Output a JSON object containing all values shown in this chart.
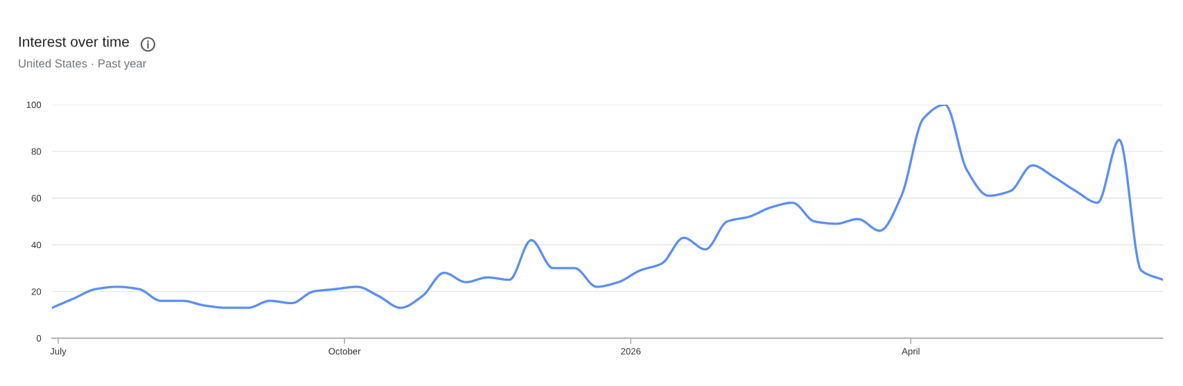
{
  "chart_data": {
    "type": "line",
    "title": "Interest over time",
    "subtitle": "United States · Past year",
    "x": [
      "2025-06-29",
      "2025-07-06",
      "2025-07-13",
      "2025-07-20",
      "2025-07-27",
      "2025-08-03",
      "2025-08-10",
      "2025-08-17",
      "2025-08-24",
      "2025-08-31",
      "2025-09-07",
      "2025-09-14",
      "2025-09-21",
      "2025-09-28",
      "2025-10-05",
      "2025-10-12",
      "2025-10-19",
      "2025-10-26",
      "2025-11-02",
      "2025-11-09",
      "2025-11-16",
      "2025-11-23",
      "2025-11-30",
      "2025-12-07",
      "2025-12-14",
      "2025-12-21",
      "2025-12-28",
      "2026-01-04",
      "2026-01-11",
      "2026-01-18",
      "2026-01-25",
      "2026-02-01",
      "2026-02-08",
      "2026-02-15",
      "2026-02-22",
      "2026-03-01",
      "2026-03-08",
      "2026-03-15",
      "2026-03-22",
      "2026-03-29",
      "2026-04-05",
      "2026-04-12",
      "2026-04-19",
      "2026-04-26",
      "2026-05-03",
      "2026-05-10",
      "2026-05-17",
      "2026-05-24",
      "2026-05-31",
      "2026-06-07",
      "2026-06-14",
      "2026-06-21"
    ],
    "series": [
      {
        "color": "#5b8ff0",
        "values": [
          13,
          17,
          21,
          22,
          21,
          16,
          16,
          14,
          13,
          13,
          16,
          15,
          20,
          21,
          22,
          18,
          13,
          18,
          28,
          24,
          26,
          25,
          42,
          30,
          30,
          22,
          24,
          29,
          32,
          43,
          38,
          50,
          52,
          56,
          58,
          50,
          49,
          51,
          46,
          61,
          94,
          100,
          72,
          61,
          63,
          74,
          69,
          63,
          58,
          85,
          29,
          25
        ]
      }
    ],
    "xlim": [
      "2025-06-29",
      "2026-06-21"
    ],
    "xticks": [
      {
        "value": "2025-07-01",
        "label": "July"
      },
      {
        "value": "2025-10-01",
        "label": "October"
      },
      {
        "value": "2026-01-01",
        "label": "2026"
      },
      {
        "value": "2026-04-01",
        "label": "April"
      }
    ],
    "ylim": [
      0,
      100
    ],
    "yticks": [
      0,
      20,
      40,
      60,
      80,
      100
    ],
    "grid": "y"
  }
}
